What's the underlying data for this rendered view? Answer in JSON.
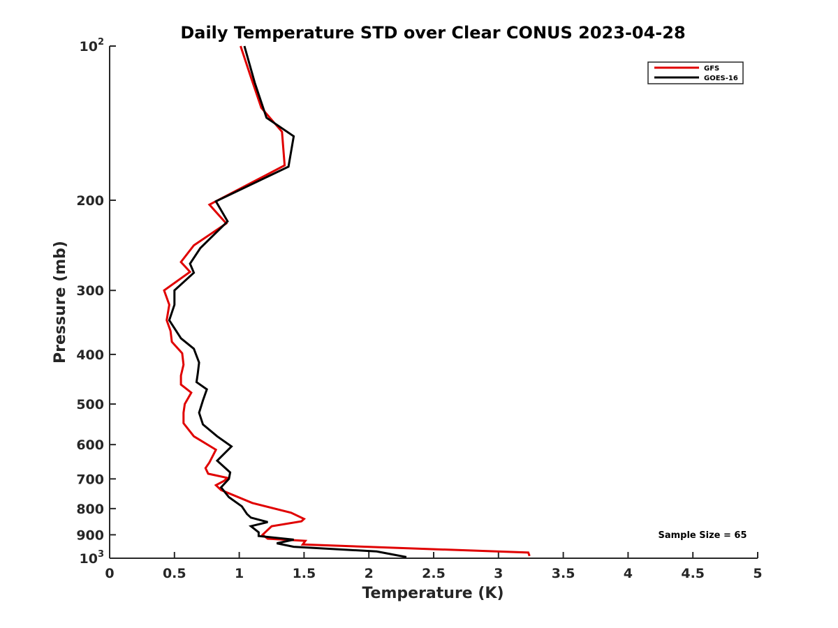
{
  "chart_data": {
    "type": "line",
    "title": "Daily Temperature STD over Clear CONUS 2023-04-28",
    "xlabel": "Temperature (K)",
    "ylabel": "Pressure (mb)",
    "xlim": [
      0,
      5
    ],
    "ylim": [
      100,
      1000
    ],
    "y_scale": "log",
    "y_reversed": true,
    "grid": false,
    "legend_position": "top-right",
    "x_ticks": [
      0,
      0.5,
      1,
      1.5,
      2,
      2.5,
      3,
      3.5,
      4,
      4.5,
      5
    ],
    "x_tick_labels": [
      "0",
      "0.5",
      "1",
      "1.5",
      "2",
      "2.5",
      "3",
      "3.5",
      "4",
      "4.5",
      "5"
    ],
    "y_ticks": [
      {
        "value": 100,
        "base": "10",
        "exp": "2"
      },
      {
        "value": 200,
        "label": "200"
      },
      {
        "value": 300,
        "label": "300"
      },
      {
        "value": 400,
        "label": "400"
      },
      {
        "value": 500,
        "label": "500"
      },
      {
        "value": 600,
        "label": "600"
      },
      {
        "value": 700,
        "label": "700"
      },
      {
        "value": 800,
        "label": "800"
      },
      {
        "value": 900,
        "label": "900"
      },
      {
        "value": 1000,
        "base": "10",
        "exp": "3"
      }
    ],
    "series": [
      {
        "name": "GFS",
        "color": "#e00000",
        "points": [
          [
            1.01,
            100
          ],
          [
            1.09,
            115
          ],
          [
            1.17,
            132
          ],
          [
            1.33,
            147
          ],
          [
            1.35,
            171
          ],
          [
            0.77,
            204
          ],
          [
            0.9,
            222
          ],
          [
            0.65,
            245
          ],
          [
            0.55,
            264
          ],
          [
            0.62,
            276
          ],
          [
            0.42,
            300
          ],
          [
            0.46,
            320
          ],
          [
            0.44,
            343
          ],
          [
            0.47,
            360
          ],
          [
            0.48,
            378
          ],
          [
            0.56,
            398
          ],
          [
            0.57,
            419
          ],
          [
            0.55,
            440
          ],
          [
            0.55,
            458
          ],
          [
            0.63,
            475
          ],
          [
            0.58,
            500
          ],
          [
            0.57,
            520
          ],
          [
            0.57,
            545
          ],
          [
            0.65,
            578
          ],
          [
            0.82,
            614
          ],
          [
            0.77,
            650
          ],
          [
            0.74,
            667
          ],
          [
            0.76,
            684
          ],
          [
            0.91,
            697
          ],
          [
            0.88,
            707
          ],
          [
            0.82,
            720
          ],
          [
            0.86,
            736
          ],
          [
            1.1,
            780
          ],
          [
            1.4,
            815
          ],
          [
            1.5,
            838
          ],
          [
            1.48,
            847
          ],
          [
            1.25,
            866
          ],
          [
            1.18,
            900
          ],
          [
            1.22,
            916
          ],
          [
            1.51,
            925
          ],
          [
            1.49,
            940
          ],
          [
            3.23,
            975
          ],
          [
            3.24,
            990
          ]
        ]
      },
      {
        "name": "GOES-16",
        "color": "#000000",
        "points": [
          [
            1.04,
            100
          ],
          [
            1.12,
            118
          ],
          [
            1.21,
            138
          ],
          [
            1.42,
            150
          ],
          [
            1.38,
            172
          ],
          [
            0.82,
            201
          ],
          [
            0.91,
            220
          ],
          [
            0.7,
            248
          ],
          [
            0.62,
            266
          ],
          [
            0.65,
            277
          ],
          [
            0.5,
            300
          ],
          [
            0.5,
            320
          ],
          [
            0.46,
            343
          ],
          [
            0.55,
            372
          ],
          [
            0.65,
            390
          ],
          [
            0.69,
            415
          ],
          [
            0.68,
            436
          ],
          [
            0.67,
            453
          ],
          [
            0.75,
            468
          ],
          [
            0.72,
            492
          ],
          [
            0.69,
            520
          ],
          [
            0.72,
            548
          ],
          [
            0.83,
            578
          ],
          [
            0.94,
            605
          ],
          [
            0.83,
            645
          ],
          [
            0.93,
            680
          ],
          [
            0.92,
            700
          ],
          [
            0.86,
            727
          ],
          [
            0.92,
            760
          ],
          [
            1.02,
            792
          ],
          [
            1.06,
            820
          ],
          [
            1.09,
            833
          ],
          [
            1.22,
            850
          ],
          [
            1.09,
            866
          ],
          [
            1.15,
            890
          ],
          [
            1.15,
            905
          ],
          [
            1.42,
            920
          ],
          [
            1.29,
            935
          ],
          [
            1.42,
            950
          ],
          [
            2.06,
            970
          ],
          [
            2.29,
            995
          ]
        ]
      }
    ],
    "annotation": "Sample Size = 65"
  }
}
